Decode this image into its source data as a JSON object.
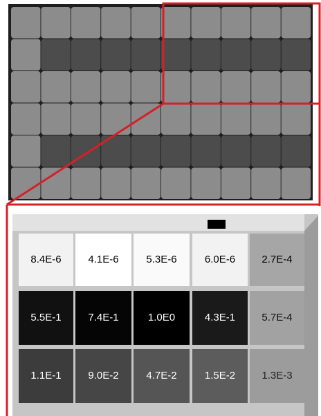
{
  "grid": {
    "rows": [
      [
        "8.4E-6",
        "4.1E-6",
        "5.3E-6",
        "6.0E-6",
        "2.7E-4"
      ],
      [
        "5.5E-1",
        "7.4E-1",
        "1.0E0",
        "4.3E-1",
        "5.7E-4"
      ],
      [
        "1.1E-1",
        "9.0E-2",
        "4.7E-2",
        "1.5E-2",
        "1.3E-3"
      ]
    ]
  }
}
